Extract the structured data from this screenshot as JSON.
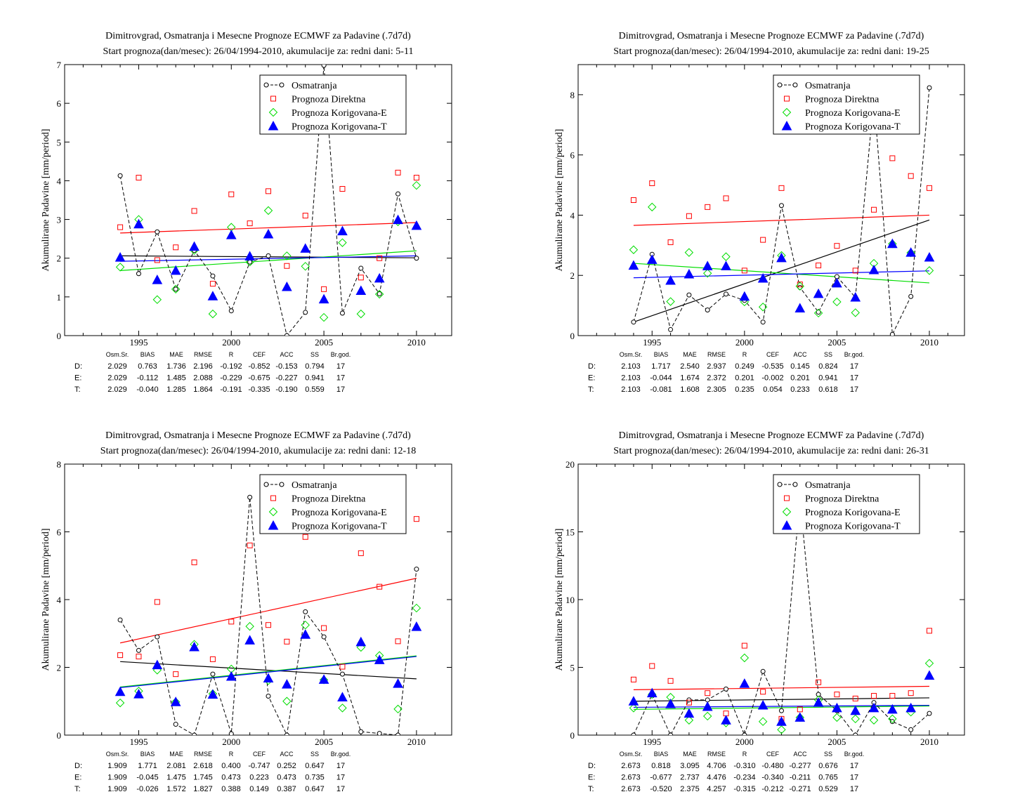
{
  "chart_data": [
    {
      "type": "scatter",
      "title": "Dimitrovgrad, Osmatranja i Mesecne Prognoze ECMWF za Padavine (.7d7d)",
      "subtitle": "Start prognoza(dan/mesec): 26/04/1994-2010, akumulacije za: redni dani: 5-11",
      "ylabel": "Akumulirane Padavine [mm/period]",
      "x": [
        1994,
        1995,
        1996,
        1997,
        1998,
        1999,
        2000,
        2001,
        2002,
        2003,
        2004,
        2005,
        2006,
        2007,
        2008,
        2009,
        2010
      ],
      "xlim": [
        1991.0,
        2011.9
      ],
      "ylim": [
        0,
        7
      ],
      "x_ticks": [
        1995,
        2000,
        2005,
        2010
      ],
      "y_ticks": [
        0,
        1,
        2,
        3,
        4,
        5,
        6,
        7
      ],
      "series": [
        {
          "name": "Osmatranja",
          "marker": "circle",
          "line": "dashed",
          "color": "#000000",
          "values": [
            4.13,
            1.6,
            2.68,
            1.2,
            2.2,
            1.54,
            0.64,
            1.9,
            2.06,
            0.0,
            0.6,
            6.98,
            0.58,
            1.74,
            1.08,
            3.66,
            2.0
          ]
        },
        {
          "name": "Prognoza Direktna",
          "marker": "square",
          "color": "#ff0000",
          "values": [
            2.8,
            4.08,
            1.95,
            2.28,
            3.22,
            1.34,
            3.65,
            2.9,
            3.73,
            1.8,
            3.1,
            1.2,
            3.79,
            1.5,
            2.0,
            4.21,
            4.08
          ]
        },
        {
          "name": "Prognoza Korigovana-E",
          "marker": "diamond",
          "color": "#00dd00",
          "values": [
            1.77,
            3.0,
            0.93,
            1.2,
            2.2,
            0.56,
            2.8,
            1.9,
            3.23,
            2.06,
            1.79,
            0.47,
            2.4,
            0.56,
            1.07,
            2.94,
            3.88
          ]
        },
        {
          "name": "Prognoza Korigovana-T",
          "marker": "triangle",
          "color": "#0000ff",
          "values": [
            2.02,
            2.88,
            1.44,
            1.68,
            2.3,
            1.02,
            2.6,
            2.05,
            2.62,
            1.26,
            2.25,
            0.94,
            2.7,
            1.16,
            1.48,
            2.99,
            2.84
          ]
        }
      ],
      "trends": [
        {
          "color": "#000000",
          "y0": 2.06,
          "y1": 2.01
        },
        {
          "color": "#ff0000",
          "y0": 2.65,
          "y1": 2.92
        },
        {
          "color": "#00dd00",
          "y0": 1.68,
          "y1": 2.19
        },
        {
          "color": "#0000ff",
          "y0": 1.92,
          "y1": 2.06
        }
      ],
      "stats": {
        "headers": [
          "Osm.Sr.",
          "BIAS",
          "MAE",
          "RMSE",
          "R",
          "CEF",
          "ACC",
          "SS",
          "Br.god."
        ],
        "rows": [
          {
            "label": "D:",
            "color": "#ff0000",
            "values": [
              "2.029",
              "0.763",
              "1.736",
              "2.196",
              "-0.192",
              "-0.852",
              "-0.153",
              "0.794",
              "17"
            ]
          },
          {
            "label": "E:",
            "color": "#00bb00",
            "values": [
              "2.029",
              "-0.112",
              "1.485",
              "2.088",
              "-0.229",
              "-0.675",
              "-0.227",
              "0.941",
              "17"
            ]
          },
          {
            "label": "T:",
            "color": "#0000ff",
            "values": [
              "2.029",
              "-0.040",
              "1.285",
              "1.864",
              "-0.191",
              "-0.335",
              "-0.190",
              "0.559",
              "17"
            ]
          }
        ]
      }
    },
    {
      "type": "scatter",
      "title": "Dimitrovgrad, Osmatranja i Mesecne Prognoze ECMWF za Padavine (.7d7d)",
      "subtitle": "Start prognoza(dan/mesec): 26/04/1994-2010, akumulacije za: redni dani: 19-25",
      "ylabel": "Akumulirane Padavine [mm/period]",
      "x": [
        1994,
        1995,
        1996,
        1997,
        1998,
        1999,
        2000,
        2001,
        2002,
        2003,
        2004,
        2005,
        2006,
        2007,
        2008,
        2009,
        2010
      ],
      "xlim": [
        1991.0,
        2011.9
      ],
      "ylim": [
        0,
        9
      ],
      "x_ticks": [
        1995,
        2000,
        2005,
        2010
      ],
      "y_ticks": [
        0,
        2,
        4,
        6,
        8
      ],
      "series": [
        {
          "name": "Osmatranja",
          "marker": "circle",
          "line": "dashed",
          "color": "#000000",
          "values": [
            0.45,
            2.7,
            0.2,
            1.35,
            0.85,
            1.38,
            1.17,
            0.45,
            4.32,
            1.6,
            0.78,
            1.96,
            1.27,
            7.9,
            0.04,
            1.3,
            8.23
          ]
        },
        {
          "name": "Prognoza Direktna",
          "marker": "square",
          "color": "#ff0000",
          "values": [
            4.5,
            5.06,
            3.1,
            3.97,
            4.27,
            4.56,
            2.16,
            3.18,
            4.9,
            1.7,
            2.33,
            2.98,
            2.16,
            4.18,
            5.89,
            5.3,
            4.9
          ]
        },
        {
          "name": "Prognoza Korigovana-E",
          "marker": "diamond",
          "color": "#00dd00",
          "values": [
            2.85,
            4.27,
            1.13,
            2.76,
            2.07,
            2.62,
            1.12,
            0.95,
            2.66,
            1.64,
            0.75,
            1.12,
            0.76,
            2.4,
            3.05,
            2.75,
            2.16
          ]
        },
        {
          "name": "Prognoza Korigovana-T",
          "marker": "triangle",
          "color": "#0000ff",
          "values": [
            2.33,
            2.52,
            1.83,
            2.04,
            2.31,
            2.31,
            1.3,
            1.9,
            2.58,
            0.91,
            1.39,
            1.74,
            1.27,
            2.18,
            3.05,
            2.76,
            2.6
          ]
        }
      ],
      "trends": [
        {
          "color": "#000000",
          "y0": 0.45,
          "y1": 3.84
        },
        {
          "color": "#ff0000",
          "y0": 3.66,
          "y1": 4.0
        },
        {
          "color": "#00dd00",
          "y0": 2.4,
          "y1": 1.75
        },
        {
          "color": "#0000ff",
          "y0": 1.92,
          "y1": 2.15
        }
      ],
      "stats": {
        "headers": [
          "Osm.Sr.",
          "BIAS",
          "MAE",
          "RMSE",
          "R",
          "CEF",
          "ACC",
          "SS",
          "Br.god."
        ],
        "rows": [
          {
            "label": "D:",
            "color": "#ff0000",
            "values": [
              "2.103",
              "1.717",
              "2.540",
              "2.937",
              "0.249",
              "-0.535",
              "0.145",
              "0.824",
              "17"
            ]
          },
          {
            "label": "E:",
            "color": "#00bb00",
            "values": [
              "2.103",
              "-0.044",
              "1.674",
              "2.372",
              "0.201",
              "-0.002",
              "0.201",
              "0.941",
              "17"
            ]
          },
          {
            "label": "T:",
            "color": "#0000ff",
            "values": [
              "2.103",
              "-0.081",
              "1.608",
              "2.305",
              "0.235",
              "0.054",
              "0.233",
              "0.618",
              "17"
            ]
          }
        ]
      }
    },
    {
      "type": "scatter",
      "title": "Dimitrovgrad, Osmatranja i Mesecne Prognoze ECMWF za Padavine (.7d7d)",
      "subtitle": "Start prognoza(dan/mesec): 26/04/1994-2010, akumulacije za: redni dani: 12-18",
      "ylabel": "Akumulirane Padavine [mm/period]",
      "x": [
        1994,
        1995,
        1996,
        1997,
        1998,
        1999,
        2000,
        2001,
        2002,
        2003,
        2004,
        2005,
        2006,
        2007,
        2008,
        2009,
        2010
      ],
      "xlim": [
        1991.0,
        2011.9
      ],
      "ylim": [
        0,
        8
      ],
      "x_ticks": [
        1995,
        2000,
        2005,
        2010
      ],
      "y_ticks": [
        0,
        2,
        4,
        6,
        8
      ],
      "series": [
        {
          "name": "Osmatranja",
          "marker": "circle",
          "line": "dashed",
          "color": "#000000",
          "values": [
            3.4,
            2.5,
            2.9,
            0.32,
            0.0,
            1.8,
            0.04,
            7.02,
            1.15,
            0.0,
            3.64,
            2.9,
            1.8,
            0.1,
            0.05,
            0.0,
            4.9
          ]
        },
        {
          "name": "Prognoza Direktna",
          "marker": "square",
          "color": "#ff0000",
          "values": [
            2.36,
            2.32,
            3.93,
            1.8,
            5.1,
            2.24,
            3.35,
            5.6,
            3.25,
            2.76,
            5.85,
            3.16,
            2.02,
            5.37,
            4.38,
            2.77,
            6.38
          ]
        },
        {
          "name": "Prognoza Korigovana-E",
          "marker": "diamond",
          "color": "#00dd00",
          "values": [
            0.95,
            1.3,
            1.92,
            0.98,
            2.68,
            1.22,
            1.95,
            3.21,
            1.61,
            1.0,
            3.25,
            1.63,
            0.8,
            2.59,
            2.35,
            0.77,
            3.75
          ]
        },
        {
          "name": "Prognoza Korigovana-T",
          "marker": "triangle",
          "color": "#0000ff",
          "values": [
            1.28,
            1.21,
            2.07,
            0.98,
            2.6,
            1.2,
            1.73,
            2.8,
            1.68,
            1.5,
            2.97,
            1.64,
            1.12,
            2.75,
            2.22,
            1.52,
            3.2
          ]
        }
      ],
      "trends": [
        {
          "color": "#000000",
          "y0": 2.17,
          "y1": 1.66
        },
        {
          "color": "#ff0000",
          "y0": 2.72,
          "y1": 4.63
        },
        {
          "color": "#00dd00",
          "y0": 1.42,
          "y1": 2.34
        },
        {
          "color": "#0000ff",
          "y0": 1.4,
          "y1": 2.32
        }
      ],
      "stats": {
        "headers": [
          "Osm.Sr.",
          "BIAS",
          "MAE",
          "RMSE",
          "R",
          "CEF",
          "ACC",
          "SS",
          "Br.god."
        ],
        "rows": [
          {
            "label": "D:",
            "color": "#ff0000",
            "values": [
              "1.909",
              "1.771",
              "2.081",
              "2.618",
              "0.400",
              "-0.747",
              "0.252",
              "0.647",
              "17"
            ]
          },
          {
            "label": "E:",
            "color": "#00bb00",
            "values": [
              "1.909",
              "-0.045",
              "1.475",
              "1.745",
              "0.473",
              "0.223",
              "0.473",
              "0.735",
              "17"
            ]
          },
          {
            "label": "T:",
            "color": "#0000ff",
            "values": [
              "1.909",
              "-0.026",
              "1.572",
              "1.827",
              "0.388",
              "0.149",
              "0.387",
              "0.647",
              "17"
            ]
          }
        ]
      }
    },
    {
      "type": "scatter",
      "title": "Dimitrovgrad, Osmatranja i Mesecne Prognoze ECMWF za Padavine (.7d7d)",
      "subtitle": "Start prognoza(dan/mesec): 26/04/1994-2010, akumulacije za: redni dani: 26-31",
      "ylabel": "Akumulirane Padavine [mm/period]",
      "x": [
        1994,
        1995,
        1996,
        1997,
        1998,
        1999,
        2000,
        2001,
        2002,
        2003,
        2004,
        2005,
        2006,
        2007,
        2008,
        2009,
        2010
      ],
      "xlim": [
        1991.0,
        2011.9
      ],
      "ylim": [
        0,
        20
      ],
      "x_ticks": [
        1995,
        2000,
        2005,
        2010
      ],
      "y_ticks": [
        0,
        5,
        10,
        15,
        20
      ],
      "series": [
        {
          "name": "Osmatranja",
          "marker": "circle",
          "line": "dashed",
          "color": "#000000",
          "values": [
            0.0,
            3.0,
            0.0,
            2.6,
            2.6,
            3.4,
            0.0,
            4.7,
            1.8,
            17.5,
            3.0,
            1.8,
            0.0,
            2.4,
            1.0,
            0.4,
            1.6
          ]
        },
        {
          "name": "Prognoza Direktna",
          "marker": "square",
          "color": "#ff0000",
          "values": [
            4.1,
            5.1,
            4.0,
            2.4,
            3.1,
            1.6,
            6.6,
            3.2,
            1.2,
            1.9,
            3.9,
            3.0,
            2.7,
            2.9,
            2.9,
            3.1,
            7.7
          ]
        },
        {
          "name": "Prognoza Korigovana-E",
          "marker": "diamond",
          "color": "#00dd00",
          "values": [
            2.0,
            3.0,
            2.8,
            1.1,
            1.4,
            0.9,
            5.7,
            1.0,
            0.4,
            1.3,
            2.6,
            1.3,
            1.2,
            1.1,
            1.2,
            1.7,
            5.3
          ]
        },
        {
          "name": "Prognoza Korigovana-T",
          "marker": "triangle",
          "color": "#0000ff",
          "values": [
            2.5,
            3.1,
            2.3,
            1.6,
            2.1,
            1.1,
            3.8,
            2.2,
            1.0,
            1.3,
            2.4,
            2.0,
            1.8,
            2.0,
            1.9,
            2.0,
            4.4
          ]
        }
      ],
      "trends": [
        {
          "color": "#000000",
          "y0": 2.5,
          "y1": 2.75
        },
        {
          "color": "#ff0000",
          "y0": 3.35,
          "y1": 3.6
        },
        {
          "color": "#00dd00",
          "y0": 1.9,
          "y1": 2.15
        },
        {
          "color": "#0000ff",
          "y0": 2.05,
          "y1": 2.2
        }
      ],
      "stats": {
        "headers": [
          "Osm.Sr.",
          "BIAS",
          "MAE",
          "RMSE",
          "R",
          "CEF",
          "ACC",
          "SS",
          "Br.god."
        ],
        "rows": [
          {
            "label": "D:",
            "color": "#ff0000",
            "values": [
              "2.673",
              "0.818",
              "3.095",
              "4.706",
              "-0.310",
              "-0.480",
              "-0.277",
              "0.676",
              "17"
            ]
          },
          {
            "label": "E:",
            "color": "#00bb00",
            "values": [
              "2.673",
              "-0.677",
              "2.737",
              "4.476",
              "-0.234",
              "-0.340",
              "-0.211",
              "0.765",
              "17"
            ]
          },
          {
            "label": "T:",
            "color": "#0000ff",
            "values": [
              "2.673",
              "-0.520",
              "2.375",
              "4.257",
              "-0.315",
              "-0.212",
              "-0.271",
              "0.529",
              "17"
            ]
          }
        ]
      }
    }
  ]
}
